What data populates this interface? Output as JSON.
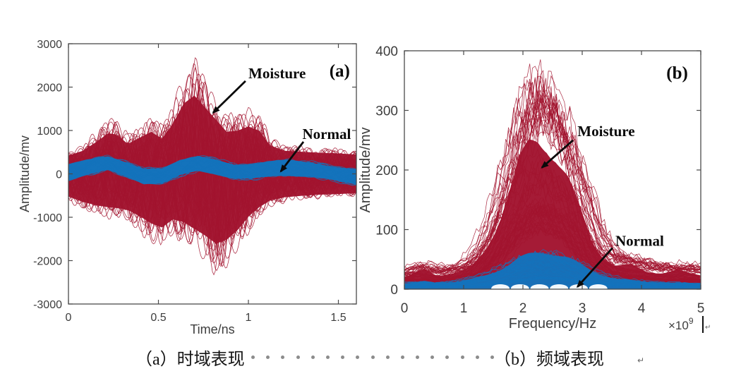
{
  "figure": {
    "background": "#ffffff",
    "captions": {
      "a": "（a）时域表现",
      "b": "（b）频域表现",
      "dot_count": 17,
      "return_mark": "↵"
    }
  },
  "chart_data": [
    {
      "id": "time_domain",
      "type": "line",
      "panel_label": {
        "text": "(a)",
        "x": 1.45,
        "y": 2240
      },
      "xlabel": "Time/ns",
      "ylabel": "Amplitude/mv",
      "xlim": [
        0,
        1.6
      ],
      "ylim": [
        -3000,
        3000
      ],
      "xticks": [
        0,
        0.5,
        1,
        1.5
      ],
      "xtick_labels": [
        "0",
        "0.5",
        "1",
        "1.5"
      ],
      "yticks": [
        -3000,
        -2000,
        -1000,
        0,
        1000,
        2000,
        3000
      ],
      "grid": false,
      "legend": "none",
      "series": [
        {
          "name": "Moisture",
          "color": "#A2142F",
          "style": "oscillatory",
          "n_traces": 64,
          "x": [
            0,
            0.08,
            0.16,
            0.22,
            0.27,
            0.33,
            0.4,
            0.46,
            0.52,
            0.58,
            0.64,
            0.7,
            0.76,
            0.82,
            0.88,
            0.94,
            1.0,
            1.06,
            1.12,
            1.2,
            1.3,
            1.4,
            1.5,
            1.6
          ],
          "upper": [
            520,
            700,
            1050,
            1350,
            1300,
            950,
            1200,
            1400,
            1150,
            1700,
            2450,
            2750,
            2300,
            1850,
            1400,
            1450,
            1600,
            1450,
            900,
            700,
            660,
            620,
            600,
            560
          ],
          "lower": [
            -650,
            -850,
            -980,
            -1050,
            -1080,
            -1150,
            -1400,
            -1650,
            -1800,
            -1500,
            -1600,
            -1850,
            -2100,
            -2400,
            -2250,
            -1900,
            -1400,
            -1050,
            -800,
            -680,
            -620,
            -580,
            -560,
            -520
          ]
        },
        {
          "name": "Normal",
          "color": "#1473BC",
          "style": "band",
          "n_traces": 28,
          "half_width": 195,
          "x": [
            0,
            0.12,
            0.22,
            0.32,
            0.42,
            0.52,
            0.62,
            0.72,
            0.82,
            0.92,
            1.02,
            1.12,
            1.22,
            1.35,
            1.5,
            1.6
          ],
          "center": [
            40,
            150,
            240,
            120,
            -40,
            -60,
            120,
            240,
            180,
            60,
            40,
            100,
            150,
            110,
            -20,
            -80
          ]
        }
      ],
      "annotations": [
        {
          "text": "Moisture",
          "text_x": 1.0,
          "text_y": 2200,
          "arrow": [
            0.984,
            2140,
            0.804,
            1410
          ]
        },
        {
          "text": "Normal",
          "text_x": 1.3,
          "text_y": 805,
          "arrow": [
            1.306,
            740,
            1.18,
            57
          ]
        }
      ]
    },
    {
      "id": "frequency_domain",
      "type": "line",
      "panel_label": {
        "text": "(b)",
        "x": 4.42,
        "y": 353
      },
      "xlabel": "Frequency/Hz",
      "x_scale": {
        "base": "×10",
        "exp": "9"
      },
      "ylabel": "Amplitude/mv",
      "xlim": [
        0,
        5
      ],
      "ylim": [
        0,
        400
      ],
      "xticks": [
        0,
        1,
        2,
        3,
        4,
        5
      ],
      "xtick_labels": [
        "0",
        "1",
        "2",
        "3",
        "4",
        "5"
      ],
      "yticks": [
        0,
        100,
        200,
        300,
        400
      ],
      "grid": false,
      "legend": "none",
      "series": [
        {
          "name": "Moisture",
          "color": "#A2142F",
          "style": "spectrum",
          "n_traces": 70,
          "fill_fraction": 0.72,
          "x": [
            0,
            0.2,
            0.35,
            0.55,
            0.75,
            0.95,
            1.15,
            1.35,
            1.55,
            1.75,
            1.95,
            2.1,
            2.25,
            2.4,
            2.55,
            2.75,
            2.95,
            3.15,
            3.35,
            3.55,
            3.85,
            4.1,
            4.35,
            4.6,
            4.8,
            5.0
          ],
          "upper": [
            28,
            40,
            46,
            34,
            38,
            42,
            55,
            90,
            150,
            230,
            310,
            345,
            357,
            350,
            325,
            270,
            195,
            120,
            78,
            58,
            56,
            42,
            40,
            46,
            38,
            34
          ]
        },
        {
          "name": "Normal",
          "color": "#1473BC",
          "style": "spectrum",
          "n_traces": 30,
          "fill_fraction": 1.0,
          "x": [
            0,
            0.2,
            0.35,
            0.55,
            0.75,
            0.95,
            1.15,
            1.35,
            1.55,
            1.75,
            1.95,
            2.1,
            2.25,
            2.4,
            2.55,
            2.75,
            2.95,
            3.15,
            3.35,
            3.55,
            3.85,
            4.1,
            4.35,
            4.6,
            4.8,
            5.0
          ],
          "upper": [
            9,
            12,
            14,
            11,
            12,
            14,
            18,
            24,
            32,
            42,
            54,
            60,
            64,
            65,
            62,
            55,
            44,
            33,
            25,
            19,
            15,
            13,
            12,
            11,
            10,
            10
          ]
        }
      ],
      "annotations": [
        {
          "text": "Moisture",
          "text_x": 2.92,
          "text_y": 257,
          "arrow": [
            2.845,
            250,
            2.32,
            204
          ]
        },
        {
          "text": "Normal",
          "text_x": 3.56,
          "text_y": 73,
          "arrow": [
            3.51,
            69,
            2.92,
            4
          ]
        }
      ]
    }
  ]
}
